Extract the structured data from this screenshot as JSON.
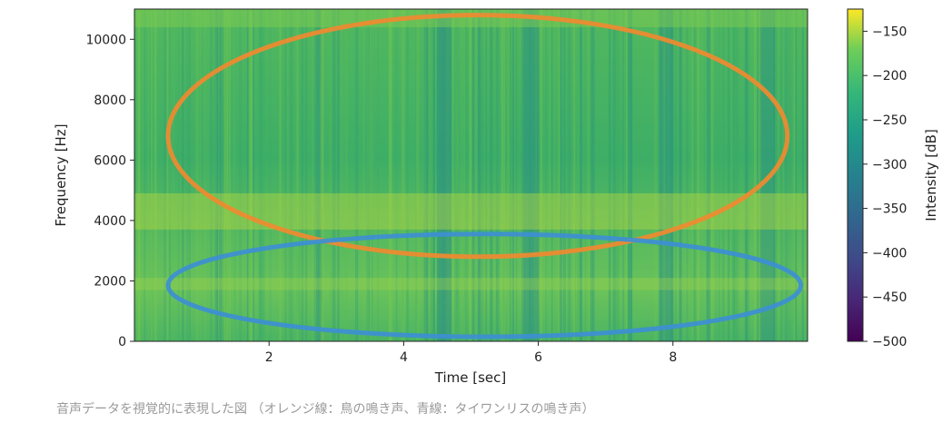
{
  "chart_data": {
    "type": "heatmap",
    "title": "",
    "xlabel": "Time [sec]",
    "ylabel": "Frequency [Hz]",
    "xlim": [
      0,
      10
    ],
    "ylim": [
      0,
      11000
    ],
    "xticks": [
      "2",
      "4",
      "6",
      "8"
    ],
    "yticks": [
      "0",
      "2000",
      "4000",
      "6000",
      "8000",
      "10000"
    ],
    "colorbar": {
      "label": "Intensity [dB]",
      "ticks": [
        "−150",
        "−200",
        "−250",
        "−300",
        "−350",
        "−400",
        "−450",
        "−500"
      ],
      "range": [
        -500,
        -125
      ],
      "colormap": "viridis"
    },
    "annotations": [
      {
        "shape": "ellipse",
        "color": "#f08a30",
        "center_time": 5.1,
        "center_freq": 6800,
        "half_width_time": 4.6,
        "half_height_freq": 4000
      },
      {
        "shape": "ellipse",
        "color": "#3d8fd4",
        "center_time": 5.2,
        "center_freq": 1850,
        "half_width_time": 4.7,
        "half_height_freq": 1700
      }
    ]
  },
  "caption": "音声データを視覚的に表現した図 （オレンジ線：鳥の鳴き声、青線：タイワンリスの鳴き声）"
}
